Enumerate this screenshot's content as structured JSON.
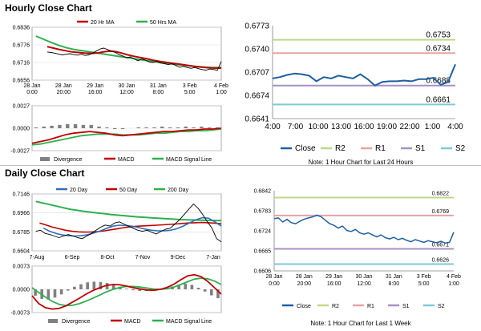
{
  "hourly": {
    "title": "Hourly Close Chart",
    "price_panel": {
      "type": "line",
      "legend": [
        "20 Hr MA",
        "50 Hrs MA"
      ],
      "colors": {
        "price": "#000000",
        "ma20": "#c00000",
        "ma50": "#2eb04f"
      },
      "y_ticks": [
        "0.6836",
        "0.6776",
        "0.6716",
        "0.6656"
      ],
      "ylim": [
        0.6656,
        0.6836
      ],
      "x_ticks": [
        [
          "28 Jan",
          "0:00"
        ],
        [
          "28 Jan",
          "20:00"
        ],
        [
          "29 Jan",
          "16:00"
        ],
        [
          "30 Jan",
          "12:00"
        ],
        [
          "31 Jan",
          "8:00"
        ],
        [
          "3 Feb",
          "5:00"
        ],
        [
          "4 Feb",
          "1:00"
        ]
      ],
      "price": [
        0.6752,
        0.675,
        0.6748,
        0.6745,
        0.6742,
        0.6744,
        0.6746,
        0.6743,
        0.6741,
        0.6744,
        0.674,
        0.6742,
        0.6748,
        0.6755,
        0.6762,
        0.6765,
        0.676,
        0.6755,
        0.675,
        0.6743,
        0.6738,
        0.6732,
        0.6735,
        0.6728,
        0.6722,
        0.6728,
        0.6724,
        0.6718,
        0.6716,
        0.672,
        0.6714,
        0.6712,
        0.6709,
        0.6712,
        0.6706,
        0.67,
        0.6703,
        0.6699,
        0.6696,
        0.6699,
        0.6695,
        0.6692,
        0.669,
        0.6694,
        0.6692,
        0.669,
        0.672
      ],
      "ma20": [
        0.677,
        0.6765,
        0.676,
        0.6756,
        0.6752,
        0.675,
        0.6748,
        0.6747,
        0.6748,
        0.6752,
        0.6755,
        0.6753,
        0.6748,
        0.6742,
        0.6737,
        0.6733,
        0.6729,
        0.6724,
        0.672,
        0.6717,
        0.6714,
        0.6711,
        0.6708,
        0.6705,
        0.6702,
        0.67,
        0.6698,
        0.6697,
        0.6697
      ],
      "ma50": [
        0.6806,
        0.6795,
        0.6784,
        0.6774,
        0.6766,
        0.676,
        0.6756,
        0.6752,
        0.6748,
        0.6744,
        0.674,
        0.6736,
        0.6732,
        0.6728,
        0.6724,
        0.672,
        0.6716,
        0.6713,
        0.671,
        0.6707,
        0.6704,
        0.6702,
        0.67,
        0.6699,
        0.6699
      ]
    },
    "macd_panel": {
      "type": "line",
      "legend": [
        "Divergence",
        "MACD",
        "MACD Signal Line"
      ],
      "colors": {
        "divergence": "#808080",
        "macd": "#c00000",
        "signal": "#2eb04f"
      },
      "y_ticks": [
        "0.0027",
        "0.0000",
        "-0.0027"
      ],
      "ylim": [
        -0.0027,
        0.0027
      ],
      "macd": [
        -0.0018,
        -0.0016,
        -0.0014,
        -0.0011,
        -0.0008,
        -0.0006,
        -0.0005,
        -0.0004,
        -0.0005,
        -0.0006,
        -0.0008,
        -0.0009,
        -0.0008,
        -0.0007,
        -0.0006,
        -0.0005,
        -0.0004,
        -0.0004,
        -0.0003,
        -0.0002,
        -0.0002,
        -0.0001,
        -0.0001,
        0.0
      ],
      "signal": [
        -0.002,
        -0.0019,
        -0.0017,
        -0.0015,
        -0.0013,
        -0.0011,
        -0.0009,
        -0.0008,
        -0.0007,
        -0.0007,
        -0.0007,
        -0.0008,
        -0.0008,
        -0.0008,
        -0.0007,
        -0.0006,
        -0.0006,
        -0.0005,
        -0.0004,
        -0.0004,
        -0.0003,
        -0.0003,
        -0.0002,
        -0.0001
      ],
      "divergence": [
        0.0001,
        0.0002,
        0.0003,
        0.0004,
        0.0005,
        0.0005,
        0.0004,
        0.0004,
        0.0002,
        0.0001,
        -0.0001,
        -0.0001,
        0.0,
        0.0001,
        0.0001,
        0.0001,
        0.0002,
        0.0001,
        0.0001,
        0.0002,
        0.0001,
        0.0002,
        0.0001,
        0.0001
      ]
    },
    "pivot_panel": {
      "type": "line",
      "y_ticks": [
        "0.6773",
        "0.6740",
        "0.6707",
        "0.6674",
        "0.6641"
      ],
      "ylim": [
        0.6641,
        0.6773
      ],
      "x_ticks": [
        "4:00",
        "7:00",
        "10:00",
        "13:00",
        "16:00",
        "19:00",
        "22:00",
        "1:00",
        "4:00"
      ],
      "levels": [
        {
          "name": "R2",
          "value": 0.6753,
          "label": "0.6753",
          "color": "#bcd88a"
        },
        {
          "name": "R1",
          "value": 0.6734,
          "label": "0.6734",
          "color": "#e6a3a3"
        },
        {
          "name": "S1",
          "value": 0.6688,
          "label": "0.6688",
          "color": "#a491c4"
        },
        {
          "name": "S2",
          "value": 0.6661,
          "label": "0.6661",
          "color": "#7fc8d8"
        }
      ],
      "close_color": "#1f5fa0",
      "close": [
        0.6698,
        0.67,
        0.6703,
        0.6705,
        0.6704,
        0.6702,
        0.6694,
        0.67,
        0.6698,
        0.6702,
        0.67,
        0.6698,
        0.6704,
        0.6697,
        0.6688,
        0.6693,
        0.6694,
        0.6694,
        0.6695,
        0.6694,
        0.6697,
        0.6697,
        0.6699,
        0.6689,
        0.6693,
        0.6718
      ],
      "legend": [
        "Close",
        "R2",
        "R1",
        "S1",
        "S2"
      ],
      "note": "Note: 1 Hour Chart for Last 24 Hours"
    }
  },
  "daily": {
    "title": "Daily Close Chart",
    "price_panel": {
      "type": "line",
      "legend": [
        "20 Day",
        "50 Day",
        "200 Day"
      ],
      "colors": {
        "price": "#000000",
        "ma20": "#2e6fb8",
        "ma50": "#c00000",
        "ma200": "#2eb04f"
      },
      "y_ticks": [
        "0.7146",
        "0.6966",
        "0.6785",
        "0.6604"
      ],
      "ylim": [
        0.6604,
        0.7146
      ],
      "x_ticks": [
        "7-Aug",
        "6-Sep",
        "8-Oct",
        "7-Nov",
        "9-Dec",
        "7-Jan"
      ],
      "price": [
        0.679,
        0.68,
        0.677,
        0.676,
        0.6745,
        0.673,
        0.6745,
        0.676,
        0.6745,
        0.673,
        0.672,
        0.6745,
        0.677,
        0.68,
        0.683,
        0.685,
        0.684,
        0.687,
        0.688,
        0.686,
        0.684,
        0.682,
        0.68,
        0.679,
        0.68,
        0.678,
        0.6765,
        0.679,
        0.681,
        0.682,
        0.686,
        0.69,
        0.695,
        0.7,
        0.705,
        0.701,
        0.695,
        0.688,
        0.682,
        0.672,
        0.669
      ],
      "ma20": [
        0.682,
        0.679,
        0.677,
        0.6755,
        0.6748,
        0.6745,
        0.6748,
        0.6758,
        0.6775,
        0.6795,
        0.682,
        0.684,
        0.6848,
        0.6845,
        0.6838,
        0.6825,
        0.6812,
        0.68,
        0.6795,
        0.6795,
        0.68,
        0.6815,
        0.684,
        0.687,
        0.69,
        0.692,
        0.6915,
        0.688,
        0.684
      ],
      "ma50": [
        0.687,
        0.685,
        0.683,
        0.6815,
        0.68,
        0.679,
        0.6785,
        0.6783,
        0.6784,
        0.6788,
        0.6795,
        0.6805,
        0.6815,
        0.6825,
        0.6832,
        0.6838,
        0.6842,
        0.6845,
        0.6848,
        0.6852,
        0.6856,
        0.686,
        0.6865,
        0.687,
        0.6872,
        0.6874,
        0.6872,
        0.6868,
        0.6862
      ],
      "ma200": [
        0.7075,
        0.706,
        0.7045,
        0.703,
        0.7015,
        0.7,
        0.699,
        0.698,
        0.6972,
        0.6965,
        0.6958,
        0.695,
        0.6944,
        0.6938,
        0.6932,
        0.6927,
        0.6922,
        0.6918,
        0.6914,
        0.691,
        0.6906,
        0.6902,
        0.69,
        0.6898,
        0.6896,
        0.6894,
        0.6893,
        0.6892
      ]
    },
    "macd_panel": {
      "type": "line",
      "legend": [
        "Divergence",
        "MACD",
        "MACD Signal Line"
      ],
      "colors": {
        "divergence": "#808080",
        "macd": "#c00000",
        "signal": "#2eb04f"
      },
      "y_ticks": [
        "0.0073",
        "0.0000",
        "-0.0073"
      ],
      "ylim": [
        -0.0073,
        0.0073
      ],
      "macd": [
        -0.002,
        -0.0045,
        -0.0058,
        -0.0062,
        -0.006,
        -0.0052,
        -0.004,
        -0.0028,
        -0.0015,
        -0.0004,
        0.0005,
        0.0012,
        0.0015,
        0.0014,
        0.001,
        0.0005,
        0.0001,
        -0.0002,
        -0.0003,
        0.0,
        0.0006,
        0.0016,
        0.003,
        0.0042,
        0.0046,
        0.004,
        0.0025,
        0.0005,
        -0.0015
      ],
      "signal": [
        0.0005,
        -0.001,
        -0.0025,
        -0.0038,
        -0.0047,
        -0.0051,
        -0.005,
        -0.0045,
        -0.0037,
        -0.0028,
        -0.0018,
        -0.0008,
        0.0,
        0.0006,
        0.0009,
        0.0009,
        0.0007,
        0.0004,
        0.0001,
        0.0,
        0.0002,
        0.0007,
        0.0015,
        0.0024,
        0.0032,
        0.0035,
        0.0033,
        0.0026,
        0.0015
      ],
      "divergence": [
        -0.002,
        -0.003,
        -0.0032,
        -0.0026,
        -0.0016,
        -0.0004,
        0.0008,
        0.0016,
        0.0022,
        0.0024,
        0.0023,
        0.002,
        0.0015,
        0.0008,
        0.0002,
        -0.0003,
        -0.0005,
        -0.0005,
        -0.0004,
        0.0,
        0.0004,
        0.0009,
        0.0015,
        0.0018,
        0.0014,
        0.0005,
        -0.0007,
        -0.0019,
        -0.0028
      ]
    },
    "pivot_panel": {
      "type": "line",
      "y_ticks": [
        "0.6842",
        "0.6783",
        "0.6724",
        "0.6665",
        "0.6606"
      ],
      "ylim": [
        0.6606,
        0.6842
      ],
      "x_ticks": [
        [
          "28 Jan",
          "0:00"
        ],
        [
          "28 Jan",
          "20:00"
        ],
        [
          "29 Jan",
          "16:00"
        ],
        [
          "30 Jan",
          "12:00"
        ],
        [
          "31 Jan",
          "8:00"
        ],
        [
          "3 Feb",
          "5:00"
        ],
        [
          "4 Feb",
          "1:00"
        ]
      ],
      "levels": [
        {
          "name": "R2",
          "value": 0.6822,
          "label": "0.6822",
          "color": "#bcd88a"
        },
        {
          "name": "R1",
          "value": 0.6769,
          "label": "0.6769",
          "color": "#e6a3a3"
        },
        {
          "name": "S1",
          "value": 0.6671,
          "label": "0.6671",
          "color": "#a491c4"
        },
        {
          "name": "S2",
          "value": 0.6626,
          "label": "0.6626",
          "color": "#7fc8d8"
        }
      ],
      "close_color": "#1f5fa0",
      "close": [
        0.676,
        0.6762,
        0.675,
        0.6758,
        0.6748,
        0.6745,
        0.6752,
        0.6758,
        0.6762,
        0.6765,
        0.677,
        0.6765,
        0.6755,
        0.6745,
        0.674,
        0.6732,
        0.6738,
        0.6725,
        0.6722,
        0.6728,
        0.6718,
        0.6714,
        0.6718,
        0.6712,
        0.6706,
        0.6712,
        0.6704,
        0.67,
        0.6705,
        0.6698,
        0.6702,
        0.6696,
        0.6692,
        0.6698,
        0.6694,
        0.669,
        0.6695,
        0.6692,
        0.6689,
        0.6693,
        0.6688,
        0.669,
        0.672
      ],
      "legend": [
        "Close",
        "R2",
        "R1",
        "S1",
        "S2"
      ],
      "note": "Note: 1 Hour Chart for Last 1 Week"
    }
  }
}
